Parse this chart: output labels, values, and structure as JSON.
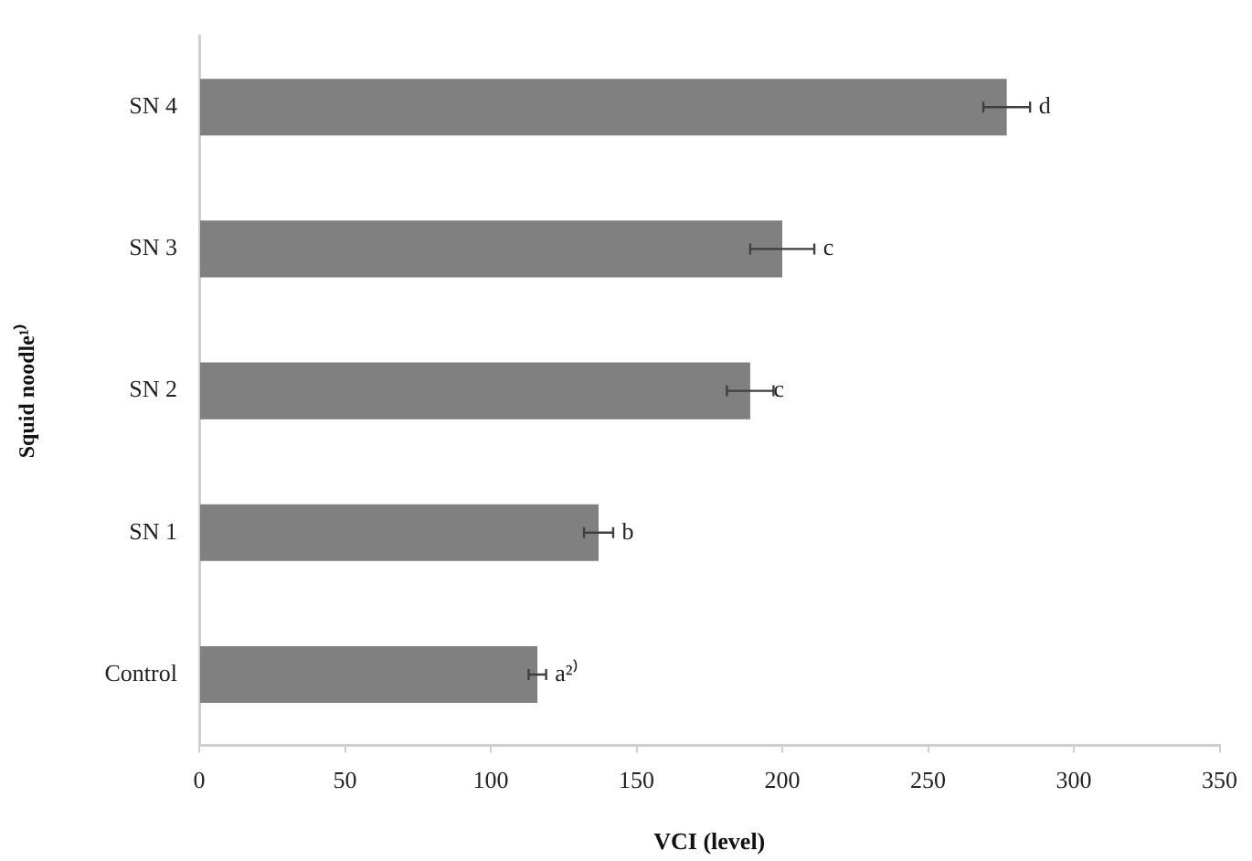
{
  "chart_data": {
    "type": "bar",
    "orientation": "horizontal",
    "xlabel": "VCI (level)",
    "ylabel": "Squid noodle¹⁾",
    "categories": [
      "SN 4",
      "SN 3",
      "SN 2",
      "SN 1",
      "Control"
    ],
    "values": [
      277,
      200,
      189,
      137,
      116
    ],
    "errors": [
      8,
      11,
      8,
      5,
      3
    ],
    "color": "#808080",
    "xlim": [
      0,
      350
    ],
    "xticks": [
      0,
      50,
      100,
      150,
      200,
      250,
      300,
      350
    ],
    "annotations": [
      {
        "text": "d",
        "x": 288,
        "y": "SN 4"
      },
      {
        "text": "c",
        "x": 214,
        "y": "SN 3"
      },
      {
        "text": "c",
        "x": 197,
        "y": "SN 2"
      },
      {
        "text": "b",
        "x": 145,
        "y": "SN 1"
      },
      {
        "text": "a²⁾",
        "x": 122,
        "y": "Control"
      }
    ]
  }
}
